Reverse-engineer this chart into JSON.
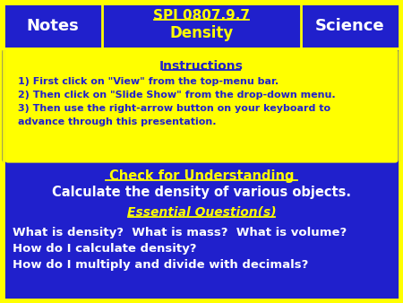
{
  "bg_color": "#FFFF00",
  "blue_color": "#2020CC",
  "yellow_color": "#FFFF00",
  "white_color": "#FFFFFF",
  "header_notes": "Notes",
  "header_title_line1": "SPI 0807.9.7",
  "header_title_line2": "Density",
  "header_science": "Science",
  "instructions_title": "Instructions",
  "instructions_lines": [
    "1) First click on \"View\" from the top-menu bar.",
    "2) Then click on \"Slide Show\" from the drop-down menu.",
    "3) Then use the right-arrow button on your keyboard to",
    "advance through this presentation."
  ],
  "check_title": "Check for Understanding",
  "check_body": "Calculate the density of various objects.",
  "eq_title": "Essential Question(s)",
  "eq_lines": [
    "What is density?  What is mass?  What is volume?",
    "How do I calculate density?",
    "How do I multiply and divide with decimals?"
  ],
  "fig_w": 4.5,
  "fig_h": 3.38,
  "dpi": 100
}
